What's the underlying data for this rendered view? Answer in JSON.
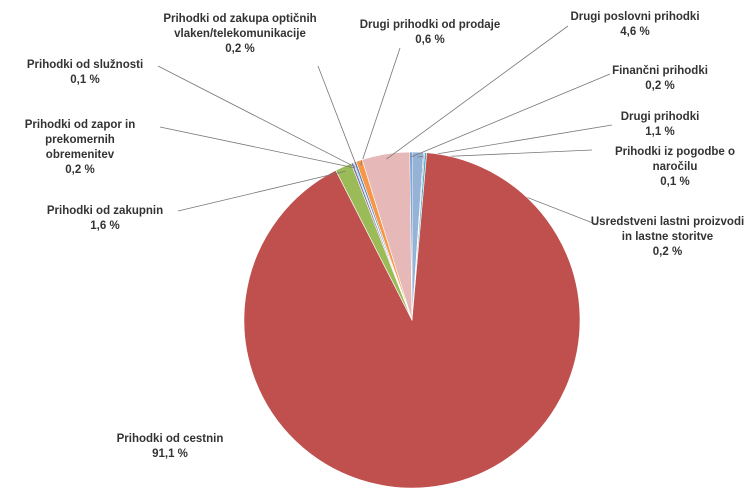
{
  "chart_data": {
    "type": "pie",
    "categories": [
      "Drugi prihodki",
      "Prihodki iz pogodbe o naročilu",
      "Usredstveni lastni proizvodi in lastne storitve",
      "Prihodki od cestnin",
      "Prihodki od zakupnin",
      "Prihodki od zapor in prekomernih obremenitev",
      "Prihodki od služnosti",
      "Prihodki od zakupa optičnih vlaken/telekomunikacije",
      "Drugi prihodki od prodaje",
      "Drugi poslovni prihodki",
      "Finančni prihodki"
    ],
    "values": [
      1.1,
      0.1,
      0.2,
      91.1,
      1.6,
      0.2,
      0.1,
      0.2,
      0.6,
      4.6,
      0.2
    ],
    "value_labels": [
      "1,1 %",
      "0,1 %",
      "0,2 %",
      "91,1 %",
      "1,6 %",
      "0,2 %",
      "0,1 %",
      "0,2 %",
      "0,6 %",
      "4,6 %",
      "0,2 %"
    ],
    "colors": [
      "#95b3d7",
      "#8064a2",
      "#4bacc6",
      "#c0504d",
      "#9bbb59",
      "#8064a2",
      "#4bacc6",
      "#4f81bd",
      "#f79646",
      "#e6b9b8",
      "#4f81bd"
    ]
  }
}
